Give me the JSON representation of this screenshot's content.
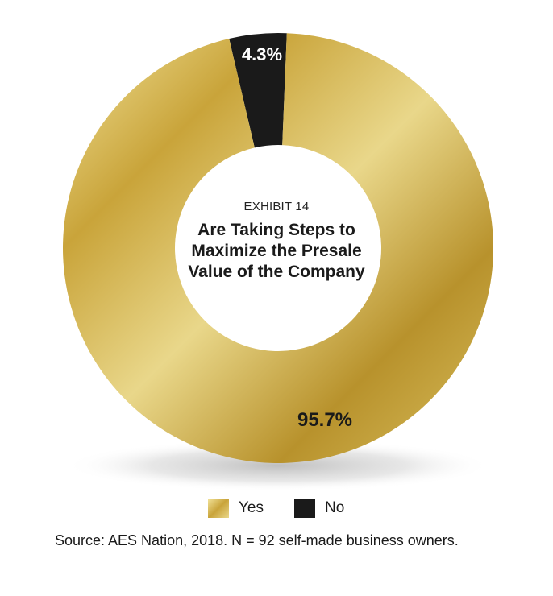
{
  "chart_data": {
    "type": "pie",
    "variant": "donut",
    "exhibit_label": "EXHIBIT 14",
    "title": "Are Taking Steps to Maximize the Presale Value of the Company",
    "title_lines": [
      "Are Taking Steps to",
      "Maximize the Presale",
      "Value of the Company"
    ],
    "slices": [
      {
        "name": "Yes",
        "value": 95.7,
        "label": "95.7%",
        "color": "#c9a43a"
      },
      {
        "name": "No",
        "value": 4.3,
        "label": "4.3%",
        "color": "#1a1a1a"
      }
    ],
    "legend": {
      "position": "bottom",
      "entries": [
        "Yes",
        "No"
      ]
    }
  },
  "source": "Source: AES Nation, 2018. N = 92 self-made business owners."
}
